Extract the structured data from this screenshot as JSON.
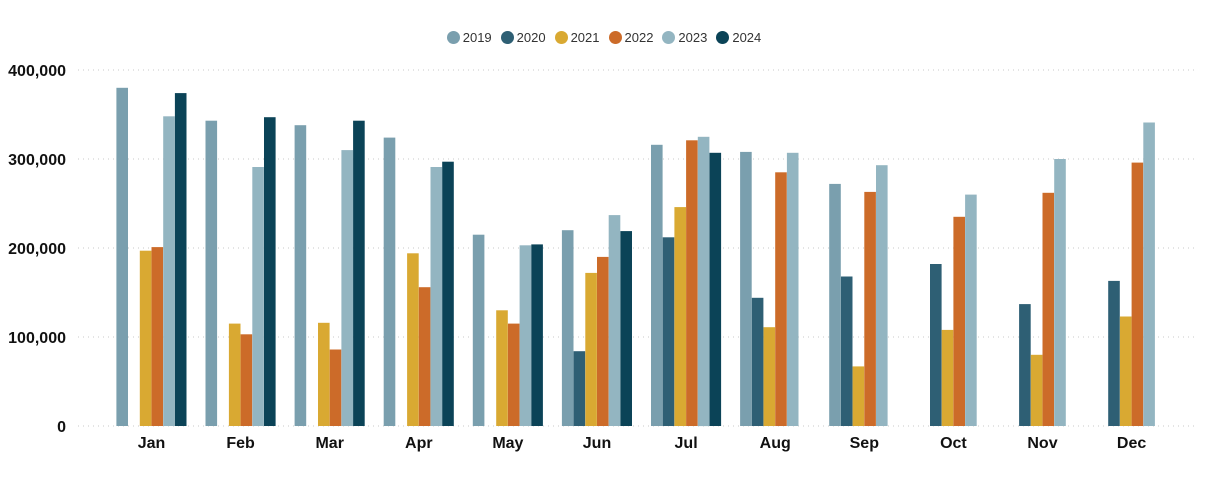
{
  "chart_data": {
    "type": "bar",
    "categories": [
      "Jan",
      "Feb",
      "Mar",
      "Apr",
      "May",
      "Jun",
      "Jul",
      "Aug",
      "Sep",
      "Oct",
      "Nov",
      "Dec"
    ],
    "series": [
      {
        "name": "2019",
        "color": "#7a9fae",
        "values": [
          380000,
          343000,
          338000,
          324000,
          215000,
          220000,
          316000,
          308000,
          272000,
          null,
          null,
          null
        ]
      },
      {
        "name": "2020",
        "color": "#2e5f74",
        "values": [
          null,
          null,
          null,
          null,
          null,
          84000,
          212000,
          144000,
          168000,
          182000,
          137000,
          163000
        ]
      },
      {
        "name": "2021",
        "color": "#d9a932",
        "values": [
          197000,
          115000,
          116000,
          194000,
          130000,
          172000,
          246000,
          111000,
          67000,
          108000,
          80000,
          123000
        ]
      },
      {
        "name": "2022",
        "color": "#cc6b29",
        "values": [
          201000,
          103000,
          86000,
          156000,
          115000,
          190000,
          321000,
          285000,
          263000,
          235000,
          262000,
          296000
        ]
      },
      {
        "name": "2023",
        "color": "#93b5c1",
        "values": [
          348000,
          291000,
          310000,
          291000,
          203000,
          237000,
          325000,
          307000,
          293000,
          260000,
          300000,
          341000
        ]
      },
      {
        "name": "2024",
        "color": "#0b4357",
        "values": [
          374000,
          347000,
          343000,
          297000,
          204000,
          219000,
          307000,
          null,
          null,
          null,
          null,
          null
        ]
      }
    ],
    "y_ticks": [
      0,
      100000,
      200000,
      300000,
      400000
    ],
    "y_tick_labels": [
      "0",
      "100,000",
      "200,000",
      "300,000",
      "400,000"
    ],
    "ylim": [
      0,
      400000
    ],
    "grid": true,
    "legend_position": "top-center"
  }
}
